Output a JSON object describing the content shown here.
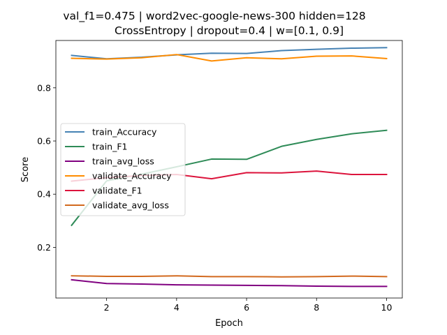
{
  "chart_data": {
    "type": "line",
    "title_line1": "val_f1=0.475 | word2vec-google-news-300  hidden=128",
    "title_line2": "CrossEntropy | dropout=0.4 | w=[0.1, 0.9]",
    "xlabel": "Epoch",
    "ylabel": "Score",
    "xlim": [
      0.55,
      10.45
    ],
    "ylim": [
      0.0095,
      0.978
    ],
    "xticks": [
      2,
      4,
      6,
      8,
      10
    ],
    "yticks": [
      0.2,
      0.4,
      0.6,
      0.8
    ],
    "ytick_labels": [
      "0.2",
      "0.4",
      "0.6",
      "0.8"
    ],
    "grid": false,
    "legend_position": "center-left",
    "x": [
      1,
      2,
      3,
      4,
      5,
      6,
      7,
      8,
      9,
      10
    ],
    "series": [
      {
        "name": "train_Accuracy",
        "color": "#4682b4",
        "values": [
          0.922,
          0.909,
          0.915,
          0.924,
          0.93,
          0.929,
          0.94,
          0.945,
          0.949,
          0.951
        ]
      },
      {
        "name": "train_F1",
        "color": "#2e8b57",
        "values": [
          0.283,
          0.45,
          0.475,
          0.503,
          0.532,
          0.531,
          0.58,
          0.606,
          0.627,
          0.64
        ]
      },
      {
        "name": "train_avg_loss",
        "color": "#800080",
        "values": [
          0.078,
          0.064,
          0.062,
          0.059,
          0.058,
          0.057,
          0.056,
          0.054,
          0.053,
          0.053
        ]
      },
      {
        "name": "validate_Accuracy",
        "color": "#ff8c00",
        "values": [
          0.911,
          0.908,
          0.913,
          0.925,
          0.901,
          0.913,
          0.909,
          0.919,
          0.92,
          0.91
        ]
      },
      {
        "name": "validate_F1",
        "color": "#dc143c",
        "values": [
          0.449,
          0.462,
          0.47,
          0.474,
          0.458,
          0.481,
          0.48,
          0.487,
          0.474,
          0.474
        ]
      },
      {
        "name": "validate_avg_loss",
        "color": "#d2691e",
        "values": [
          0.093,
          0.091,
          0.091,
          0.093,
          0.09,
          0.09,
          0.089,
          0.09,
          0.092,
          0.09
        ]
      }
    ]
  }
}
